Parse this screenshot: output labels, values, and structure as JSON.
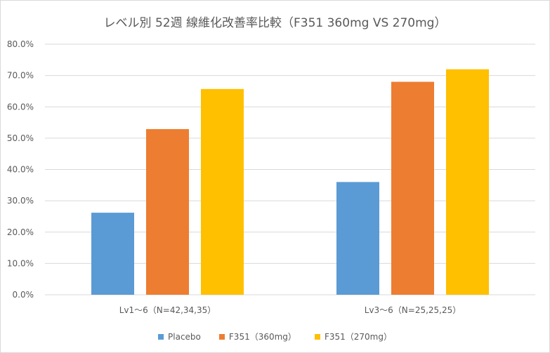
{
  "chart_data": {
    "type": "bar",
    "title": "レベル別 52週 線維化改善率比較（F351 360mg VS 270mg）",
    "categories": [
      "Lv1～6（N=42,34,35）",
      "Lv3～6（N=25,25,25）"
    ],
    "series": [
      {
        "name": "Placebo",
        "values": [
          26.2,
          36.0
        ],
        "color": "#5b9bd5"
      },
      {
        "name": "F351（360mg）",
        "values": [
          52.9,
          68.0
        ],
        "color": "#ed7d31"
      },
      {
        "name": "F351（270mg）",
        "values": [
          65.7,
          72.0
        ],
        "color": "#ffc000"
      }
    ],
    "yticks": [
      "0.0%",
      "10.0%",
      "20.0%",
      "30.0%",
      "40.0%",
      "50.0%",
      "60.0%",
      "70.0%",
      "80.0%"
    ],
    "ylim": [
      0,
      80
    ],
    "grid": true,
    "legend": "bottom"
  }
}
